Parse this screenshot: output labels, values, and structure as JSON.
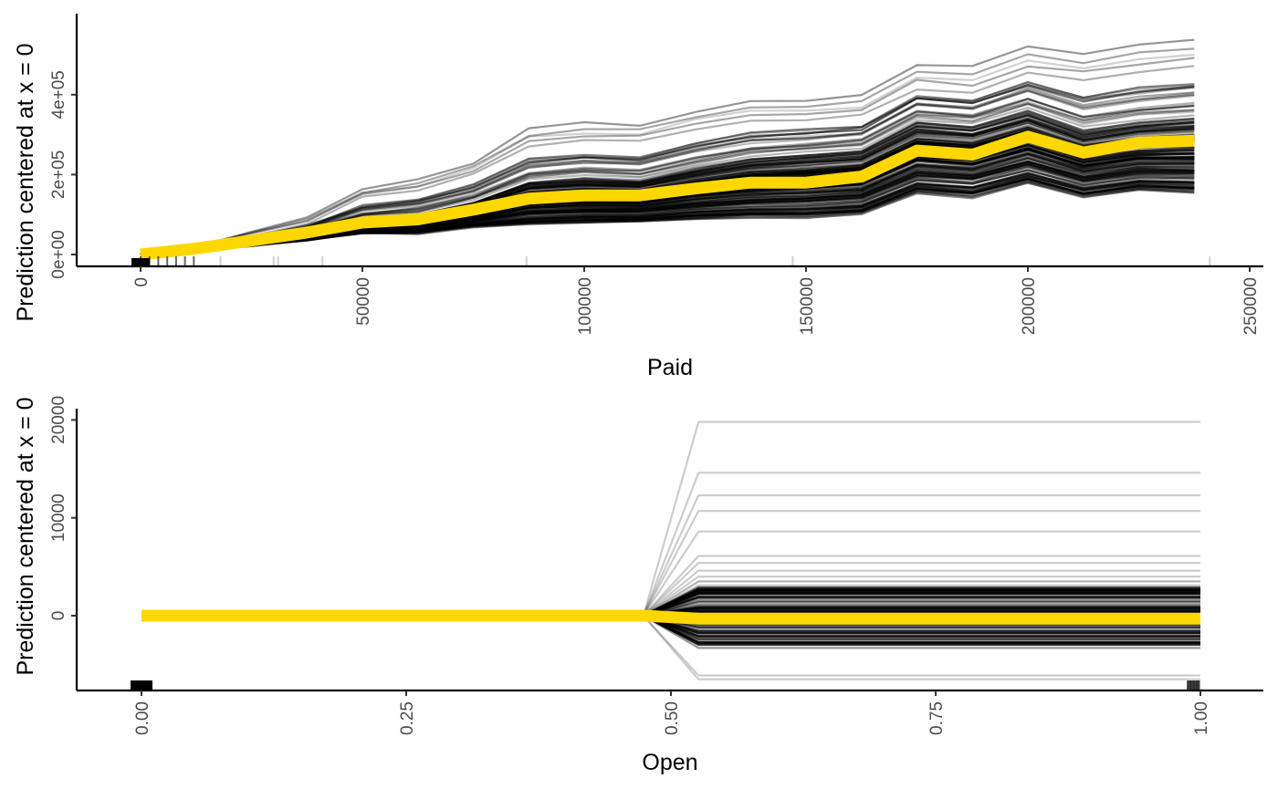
{
  "chart_data": [
    {
      "type": "line",
      "xlabel": "Paid",
      "ylabel": "Prediction centered at x = 0",
      "xlim": [
        -5000,
        250000
      ],
      "ylim": [
        -30000,
        600000
      ],
      "x_ticks": [
        0,
        50000,
        100000,
        150000,
        200000,
        250000
      ],
      "x_tick_labels": [
        "0",
        "50000",
        "100000",
        "150000",
        "200000",
        "250000"
      ],
      "y_ticks": [
        0,
        200000,
        400000
      ],
      "y_tick_labels": [
        "0e+00",
        "2e+05",
        "4e+05"
      ],
      "grid": false,
      "legend": "none",
      "x": [
        0,
        12500,
        25000,
        37500,
        50000,
        62500,
        75000,
        87500,
        100000,
        112500,
        125000,
        137500,
        150000,
        162500,
        175000,
        187500,
        200000,
        212500,
        225000,
        237500
      ],
      "pdp": [
        0,
        15000,
        35000,
        55000,
        80000,
        88000,
        112000,
        140000,
        148000,
        148000,
        165000,
        180000,
        180000,
        195000,
        260000,
        250000,
        295000,
        255000,
        280000,
        285000
      ],
      "ice_lower": [
        0,
        12000,
        28000,
        42000,
        60000,
        60000,
        80000,
        85000,
        88000,
        92000,
        100000,
        105000,
        105000,
        115000,
        170000,
        160000,
        195000,
        160000,
        180000,
        175000
      ],
      "ice_upper": [
        0,
        15000,
        38000,
        58000,
        90000,
        100000,
        130000,
        180000,
        190000,
        185000,
        215000,
        240000,
        250000,
        260000,
        330000,
        320000,
        360000,
        310000,
        330000,
        340000
      ],
      "ice_max": [
        0,
        20000,
        60000,
        95000,
        175000,
        198000,
        245000,
        335000,
        350000,
        345000,
        385000,
        410000,
        412000,
        425000,
        510000,
        500000,
        555000,
        535000,
        560000,
        575000
      ],
      "ice_min": [
        0,
        10000,
        22000,
        35000,
        52000,
        52000,
        68000,
        74000,
        77000,
        80000,
        86000,
        90000,
        90000,
        98000,
        150000,
        140000,
        175000,
        140000,
        158000,
        152000
      ],
      "rug": [
        0,
        2000,
        4000,
        6000,
        8000,
        10000,
        12000,
        18000,
        30000,
        31000,
        41000,
        87000,
        147000,
        241000
      ],
      "colors": {
        "pdp": "#FFD700",
        "ice": "#000000"
      }
    },
    {
      "type": "line",
      "xlabel": "Open",
      "ylabel": "Prediction centered at x = 0",
      "xlim": [
        -0.05,
        1.06
      ],
      "ylim": [
        -7500,
        21000
      ],
      "x_ticks": [
        0,
        0.25,
        0.5,
        0.75,
        1.0
      ],
      "x_tick_labels": [
        "0.00",
        "0.25",
        "0.50",
        "0.75",
        "1.00"
      ],
      "y_ticks": [
        0,
        10000,
        20000
      ],
      "y_tick_labels": [
        "0",
        "10000",
        "20000"
      ],
      "grid": false,
      "legend": "none",
      "x": [
        0,
        0.474,
        0.526,
        1.0
      ],
      "pdp": [
        0,
        0,
        -300,
        -300
      ],
      "ice_spread_at_1": [
        19800,
        14600,
        12300,
        10700,
        8600,
        6100,
        5400,
        4600,
        4000,
        3500,
        3100,
        2700,
        2300,
        1900,
        1500,
        1100,
        800,
        500,
        200,
        0,
        -300,
        -600,
        -900,
        -1200,
        -1500,
        -1800,
        -2100,
        -2400,
        -2700,
        -3000,
        -3300,
        -6100,
        -6500
      ],
      "rug": [
        0,
        0.005,
        0.01,
        0.99,
        0.995,
        1.0
      ],
      "colors": {
        "pdp": "#FFD700",
        "ice": "#000000"
      }
    }
  ]
}
